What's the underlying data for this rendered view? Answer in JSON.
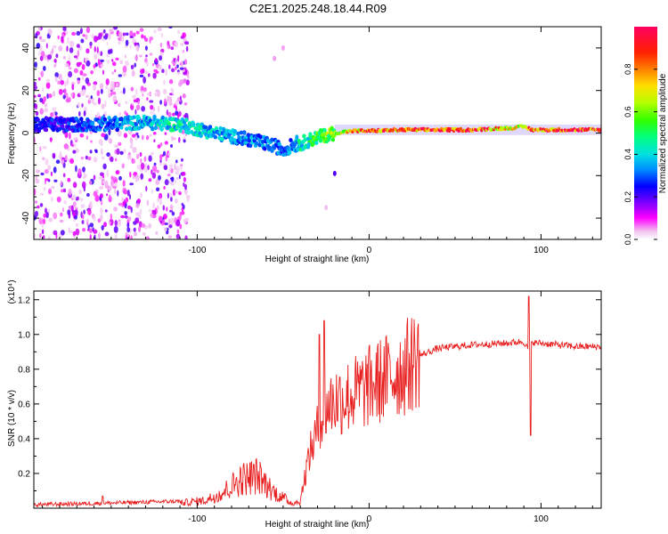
{
  "title": "C2E1.2025.248.18.44.R09",
  "chart_data": [
    {
      "type": "heatmap",
      "title": "C2E1.2025.248.18.44.R09",
      "xlabel": "Height of straight line (km)",
      "ylabel": "Frequency (Hz)",
      "xlim": [
        -195,
        135
      ],
      "ylim": [
        -50,
        50
      ],
      "x_ticks": [
        -100,
        0,
        100
      ],
      "y_ticks": [
        -40,
        -20,
        0,
        20,
        40
      ],
      "colorbar": {
        "label": "Normalized spectral amplitude",
        "range": [
          0,
          1
        ],
        "ticks": [
          "0.0",
          "0.2",
          "0.4",
          "0.6",
          "0.8"
        ],
        "colormap": [
          "#ffffff",
          "#ff00ff",
          "#7000ff",
          "#0000ff",
          "#00a0ff",
          "#00e0e0",
          "#00ff80",
          "#40ff00",
          "#c0ff00",
          "#ffd000",
          "#ff6000",
          "#ff0000",
          "#ff0060"
        ]
      },
      "ridge": {
        "description_points_x": [
          -190,
          -160,
          -130,
          -110,
          -90,
          -70,
          -55,
          -50,
          -45,
          -40,
          -30,
          -20,
          -10,
          0,
          20,
          60,
          85,
          90,
          95,
          135
        ],
        "description_points_freq": [
          4,
          4,
          5,
          4,
          0,
          -3,
          -6,
          -8,
          -6,
          -5,
          -2,
          0,
          1,
          1,
          1.5,
          1.5,
          2.5,
          3,
          1.5,
          1.5
        ],
        "description_points_amp": [
          0.25,
          0.3,
          0.4,
          0.45,
          0.4,
          0.35,
          0.35,
          0.3,
          0.35,
          0.45,
          0.55,
          0.65,
          0.8,
          0.85,
          0.9,
          0.95,
          0.7,
          0.8,
          0.9,
          0.95
        ]
      }
    },
    {
      "type": "line",
      "xlabel": "Height of straight line (km)",
      "ylabel": "SNR (10 * v/v)",
      "y_multiplier": "(x10⁴)",
      "xlim": [
        -195,
        135
      ],
      "ylim": [
        0,
        1.25
      ],
      "x_ticks": [
        -100,
        0,
        100
      ],
      "y_ticks": [
        "0.2",
        "0.4",
        "0.6",
        "0.8",
        "1.0",
        "1.2"
      ],
      "color": "#e82020",
      "envelope_x": [
        -195,
        -150,
        -110,
        -95,
        -85,
        -75,
        -65,
        -55,
        -45,
        -40,
        -35,
        -30,
        -25,
        -20,
        -10,
        0,
        10,
        20,
        30,
        40,
        60,
        80,
        90,
        93,
        95,
        97,
        100,
        120,
        135
      ],
      "envelope_y": [
        0.02,
        0.03,
        0.04,
        0.06,
        0.12,
        0.22,
        0.25,
        0.12,
        0.04,
        0.05,
        0.3,
        0.45,
        0.58,
        0.62,
        0.65,
        0.7,
        0.75,
        0.8,
        0.88,
        0.92,
        0.94,
        0.95,
        0.96,
        0.9,
        0.96,
        0.95,
        0.95,
        0.93,
        0.93
      ],
      "spikes": [
        {
          "x": -155,
          "y": 0.07
        },
        {
          "x": -29,
          "y": 1.0
        },
        {
          "x": -26,
          "y": 1.08
        },
        {
          "x": 93,
          "y": 1.22
        },
        {
          "x": 94,
          "y": 0.42
        }
      ]
    }
  ]
}
